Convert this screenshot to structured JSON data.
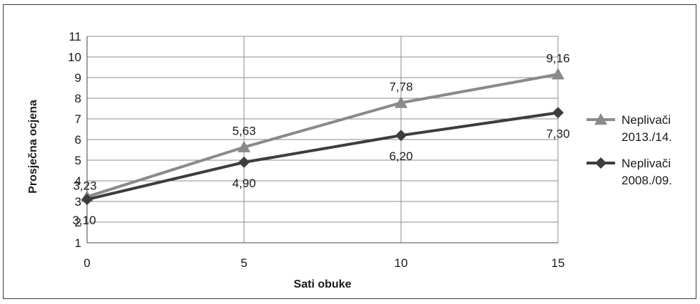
{
  "chart_data": {
    "type": "line",
    "xlabel": "Sati obuke",
    "ylabel": "Prosječna ocjena",
    "x": [
      0,
      5,
      10,
      15
    ],
    "xlim": [
      0,
      15
    ],
    "ylim": [
      1,
      11
    ],
    "x_ticks": [
      "0",
      "5",
      "10",
      "15"
    ],
    "y_ticks": [
      "1",
      "2",
      "3",
      "4",
      "5",
      "6",
      "7",
      "8",
      "9",
      "10",
      "11"
    ],
    "grid": true,
    "legend_position": "right",
    "series": [
      {
        "name": "Neplivači 2013./14.",
        "legend_lines": [
          "Neplivači",
          "2013./14."
        ],
        "values": [
          3.23,
          5.63,
          7.78,
          9.16
        ],
        "data_labels": [
          "3,23",
          "5,63",
          "7,78",
          "9,16"
        ],
        "label_side": "above",
        "marker": "triangle",
        "color": "#8a8a8a"
      },
      {
        "name": "Neplivači 2008./09.",
        "legend_lines": [
          "Neplivači",
          "2008./09."
        ],
        "values": [
          3.1,
          4.9,
          6.2,
          7.3
        ],
        "data_labels": [
          "3,10",
          "4,90",
          "6,20",
          "7,30"
        ],
        "label_side": "below",
        "marker": "diamond",
        "color": "#3d3d3d"
      }
    ],
    "gridline_color": "#8c8c8c",
    "text_color": "#1a1a1a"
  }
}
